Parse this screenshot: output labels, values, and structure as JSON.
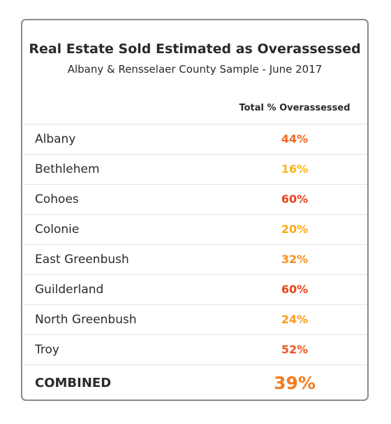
{
  "chart_data": {
    "type": "table",
    "title": "Real Estate Sold Estimated as Overassessed",
    "subtitle": "Albany & Rensselaer County Sample - June 2017",
    "column_header": "Total % Overassessed",
    "rows": [
      {
        "name": "Albany",
        "value": 44,
        "label": "44%",
        "color": "#f26a21"
      },
      {
        "name": "Bethlehem",
        "value": 16,
        "label": "16%",
        "color": "#fbb515"
      },
      {
        "name": "Cohoes",
        "value": 60,
        "label": "60%",
        "color": "#e8431e"
      },
      {
        "name": "Colonie",
        "value": 20,
        "label": "20%",
        "color": "#fba919"
      },
      {
        "name": "East Greenbush",
        "value": 32,
        "label": "32%",
        "color": "#f78d1e"
      },
      {
        "name": "Guilderland",
        "value": 60,
        "label": "60%",
        "color": "#e8431e"
      },
      {
        "name": "North Greenbush",
        "value": 24,
        "label": "24%",
        "color": "#f99c1c"
      },
      {
        "name": "Troy",
        "value": 52,
        "label": "52%",
        "color": "#ec5520"
      }
    ],
    "combined": {
      "name": "COMBINED",
      "value": 39,
      "label": "39%",
      "color": "#f47c20"
    }
  }
}
